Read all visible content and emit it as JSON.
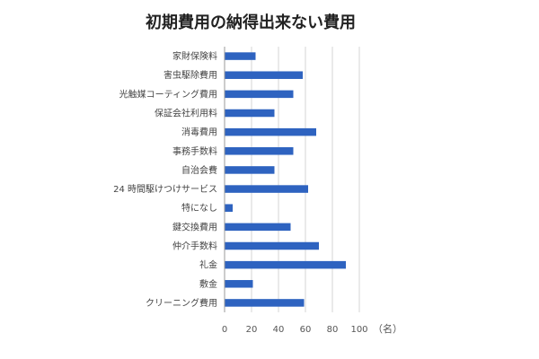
{
  "chart_data": {
    "type": "bar",
    "orientation": "horizontal",
    "title": "初期費用の納得出来ない費用",
    "unit_label": "（名）",
    "categories": [
      "家財保険料",
      "害虫駆除費用",
      "光触媒コーティング費用",
      "保証会社利用料",
      "消毒費用",
      "事務手数料",
      "自治会費",
      "24 時間駆けつけサービス",
      "特になし",
      "鍵交換費用",
      "仲介手数料",
      "礼金",
      "敷金",
      "クリーニング費用"
    ],
    "values": [
      23,
      58,
      51,
      37,
      68,
      51,
      37,
      62,
      6,
      49,
      70,
      90,
      21,
      59
    ],
    "xlim": [
      0,
      100
    ],
    "xticks": [
      "0",
      "20",
      "40",
      "60",
      "80",
      "100"
    ],
    "grid": true,
    "legend": "none",
    "colors": {
      "bar": "#2e63c0",
      "grid": "#d6d6d6",
      "axis": "#9a9a9a"
    }
  }
}
